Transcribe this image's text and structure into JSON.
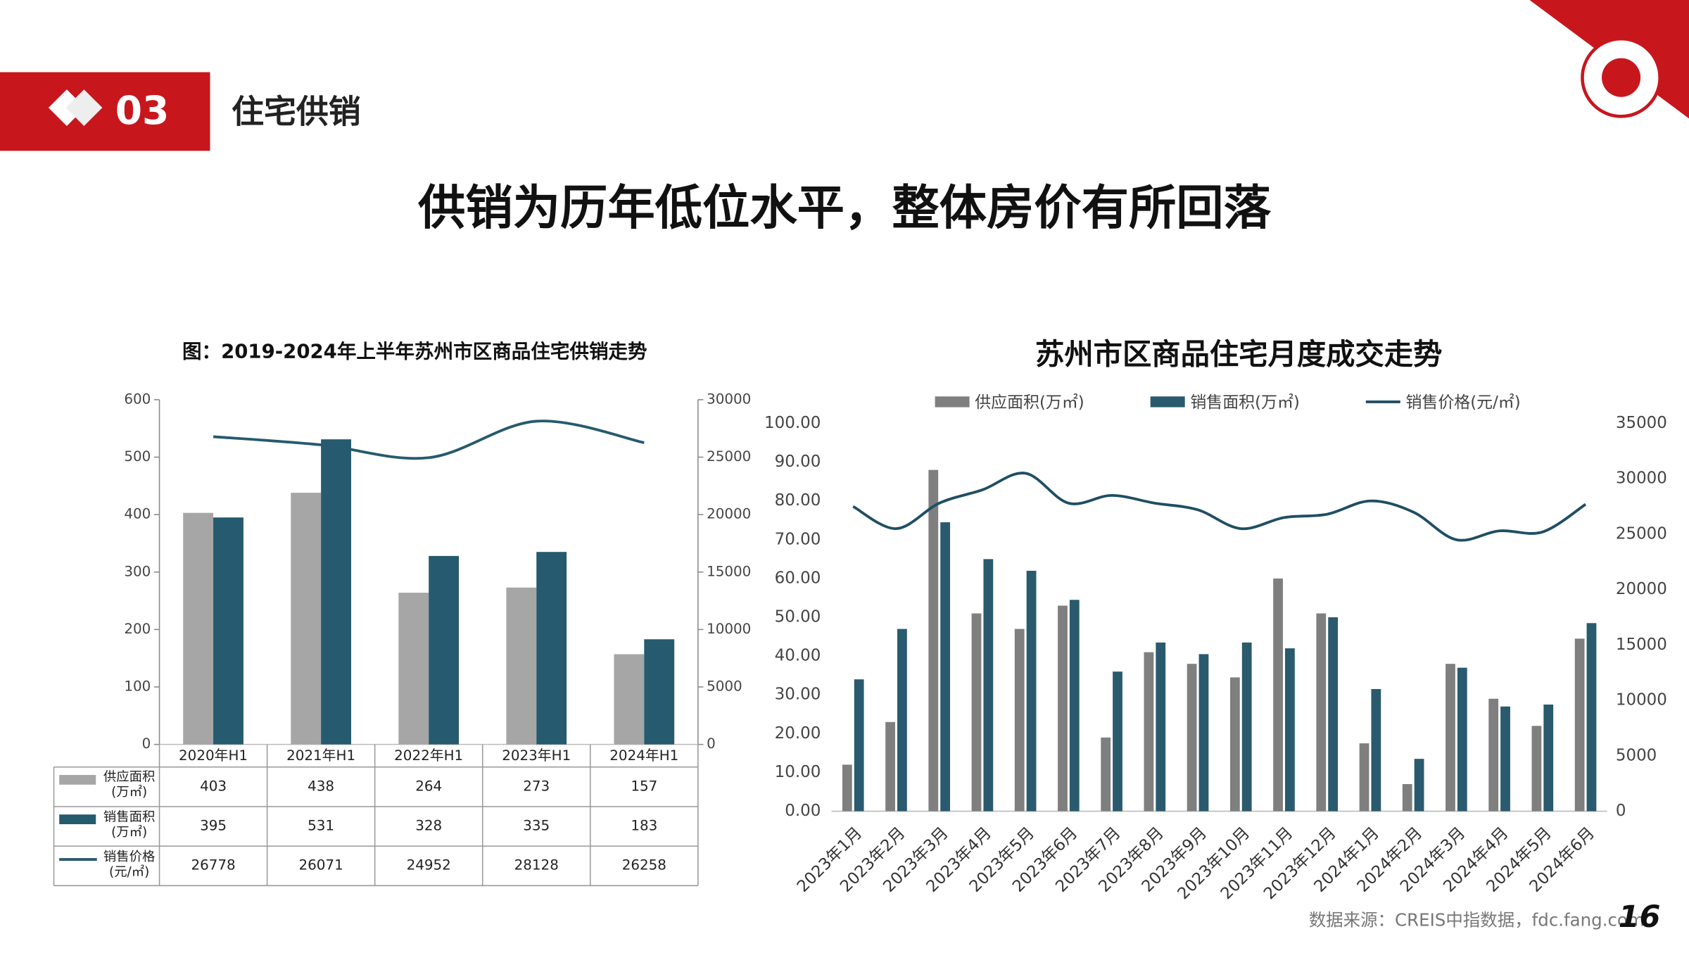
{
  "header": {
    "number": "03",
    "section": "住宅供销",
    "headline": "供销为历年低位水平，整体房价有所回落",
    "source": "数据来源：CREIS中指数据，fdc.fang.com",
    "page": "16"
  },
  "chart_data": [
    {
      "type": "bar",
      "title": "图：2019-2024年上半年苏州市区商品住宅供销走势",
      "categories": [
        "2020年H1",
        "2021年H1",
        "2022年H1",
        "2023年H1",
        "2024年H1"
      ],
      "series": [
        {
          "name": "供应面积(万㎡)",
          "color": "#a6a6a6",
          "values": [
            403,
            438,
            264,
            273,
            157
          ]
        },
        {
          "name": "销售面积(万㎡)",
          "color": "#265a6e",
          "values": [
            395,
            531,
            328,
            335,
            183
          ]
        },
        {
          "name": "销售价格(元/㎡)",
          "color": "#265a6e",
          "type": "line",
          "axis": "y2",
          "values": [
            26778,
            26071,
            24952,
            28128,
            26258
          ]
        }
      ],
      "ylim": [
        0,
        600
      ],
      "yticks": [
        0,
        100,
        200,
        300,
        400,
        500,
        600
      ],
      "y2lim": [
        0,
        30000
      ],
      "y2ticks": [
        0,
        5000,
        10000,
        15000,
        20000,
        25000,
        30000
      ],
      "legend": "table",
      "grid": false
    },
    {
      "type": "bar",
      "title": "苏州市区商品住宅月度成交走势",
      "categories": [
        "2023年1月",
        "2023年2月",
        "2023年3月",
        "2023年4月",
        "2023年5月",
        "2023年6月",
        "2023年7月",
        "2023年8月",
        "2023年9月",
        "2023年10月",
        "2023年11月",
        "2023年12月",
        "2024年1月",
        "2024年2月",
        "2024年3月",
        "2024年4月",
        "2024年5月",
        "2024年6月"
      ],
      "series": [
        {
          "name": "供应面积(万㎡)",
          "color": "#7f7f7f",
          "values": [
            12,
            23,
            88,
            51,
            47,
            53,
            19,
            41,
            38,
            34.5,
            60,
            51,
            17.5,
            7,
            38,
            29,
            22,
            44.5
          ]
        },
        {
          "name": "销售面积(万㎡)",
          "color": "#2a5a6e",
          "values": [
            34,
            47,
            74.5,
            65,
            62,
            54.5,
            36,
            43.5,
            40.5,
            43.5,
            42,
            50,
            31.5,
            13.5,
            37,
            27,
            27.5,
            48.5
          ]
        },
        {
          "name": "销售价格(元/㎡)",
          "color": "#1f4e63",
          "type": "line",
          "axis": "y2",
          "values": [
            27500,
            25500,
            27800,
            29000,
            30500,
            27800,
            28500,
            27800,
            27200,
            25500,
            26500,
            26800,
            28000,
            27000,
            24500,
            25300,
            25200,
            27700
          ]
        }
      ],
      "ylim": [
        0,
        100
      ],
      "yticks": [
        {
          "value": 0,
          "label": "0.00"
        },
        {
          "value": 10,
          "label": "10.00"
        },
        {
          "value": 20,
          "label": "20.00"
        },
        {
          "value": 30,
          "label": "30.00"
        },
        {
          "value": 40,
          "label": "40.00"
        },
        {
          "value": 50,
          "label": "50.00"
        },
        {
          "value": 60,
          "label": "60.00"
        },
        {
          "value": 70,
          "label": "70.00"
        },
        {
          "value": 80,
          "label": "80.00"
        },
        {
          "value": 90,
          "label": "90.00"
        },
        {
          "value": 100,
          "label": "100.00"
        }
      ],
      "y2lim": [
        0,
        35000
      ],
      "y2ticks": [
        0,
        5000,
        10000,
        15000,
        20000,
        25000,
        30000,
        35000
      ],
      "legend": "top",
      "grid": false
    }
  ]
}
